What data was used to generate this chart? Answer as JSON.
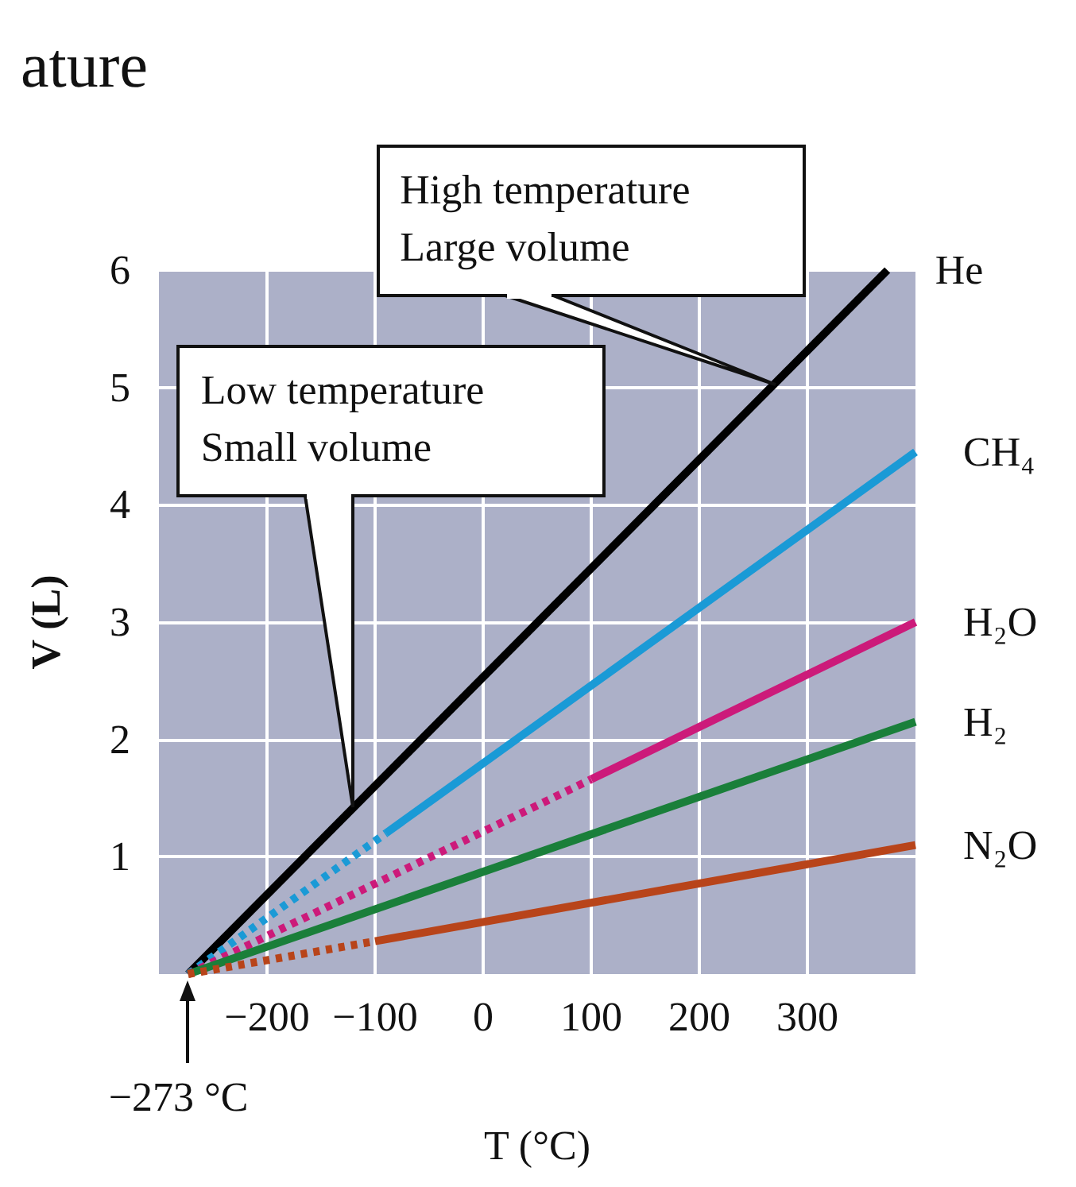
{
  "chart_data": {
    "type": "line",
    "title": "ature",
    "xlabel": "T (°C)",
    "ylabel": "V (L)",
    "xlim": [
      -300,
      400
    ],
    "xticks": [
      -200,
      -100,
      0,
      100,
      200,
      300
    ],
    "ylim": [
      0,
      6
    ],
    "yticks": [
      1,
      2,
      3,
      4,
      5,
      6
    ],
    "grid": true,
    "legend": false,
    "marker": "none",
    "annotations": [
      {
        "text": "High temperature\nLarge volume",
        "x": 270,
        "y": 5.03
      },
      {
        "text": "Low temperature\nSmall volume",
        "x": -120,
        "y": 1.42
      },
      {
        "text": "−273 °C",
        "x": -273,
        "y": 0
      }
    ],
    "series": [
      {
        "name": "He",
        "color": "#000000",
        "x": [
          -273,
          374
        ],
        "values": [
          0,
          6
        ],
        "line_style": "solid"
      },
      {
        "color": "#1a9ad6",
        "x": [
          -273,
          -90
        ],
        "values": [
          0,
          1.2
        ],
        "line_style": "dotted"
      },
      {
        "name": "CH₄",
        "color": "#1a9ad6",
        "x": [
          -90,
          400
        ],
        "values": [
          1.2,
          4.45
        ],
        "line_style": "solid"
      },
      {
        "color": "#cc1a7a",
        "x": [
          -273,
          100
        ],
        "values": [
          0,
          1.66
        ],
        "line_style": "dotted"
      },
      {
        "name": "H₂O",
        "color": "#cc1a7a",
        "x": [
          100,
          400
        ],
        "values": [
          1.66,
          3.0
        ],
        "line_style": "solid"
      },
      {
        "name": "H₂",
        "color": "#1a7f3a",
        "x": [
          -273,
          400
        ],
        "values": [
          0,
          2.15
        ],
        "line_style": "solid"
      },
      {
        "color": "#b8441a",
        "x": [
          -273,
          -100
        ],
        "values": [
          0,
          0.28
        ],
        "line_style": "dotted"
      },
      {
        "name": "N₂O",
        "color": "#b8441a",
        "x": [
          -100,
          400
        ],
        "values": [
          0.28,
          1.1
        ],
        "line_style": "solid"
      }
    ]
  }
}
